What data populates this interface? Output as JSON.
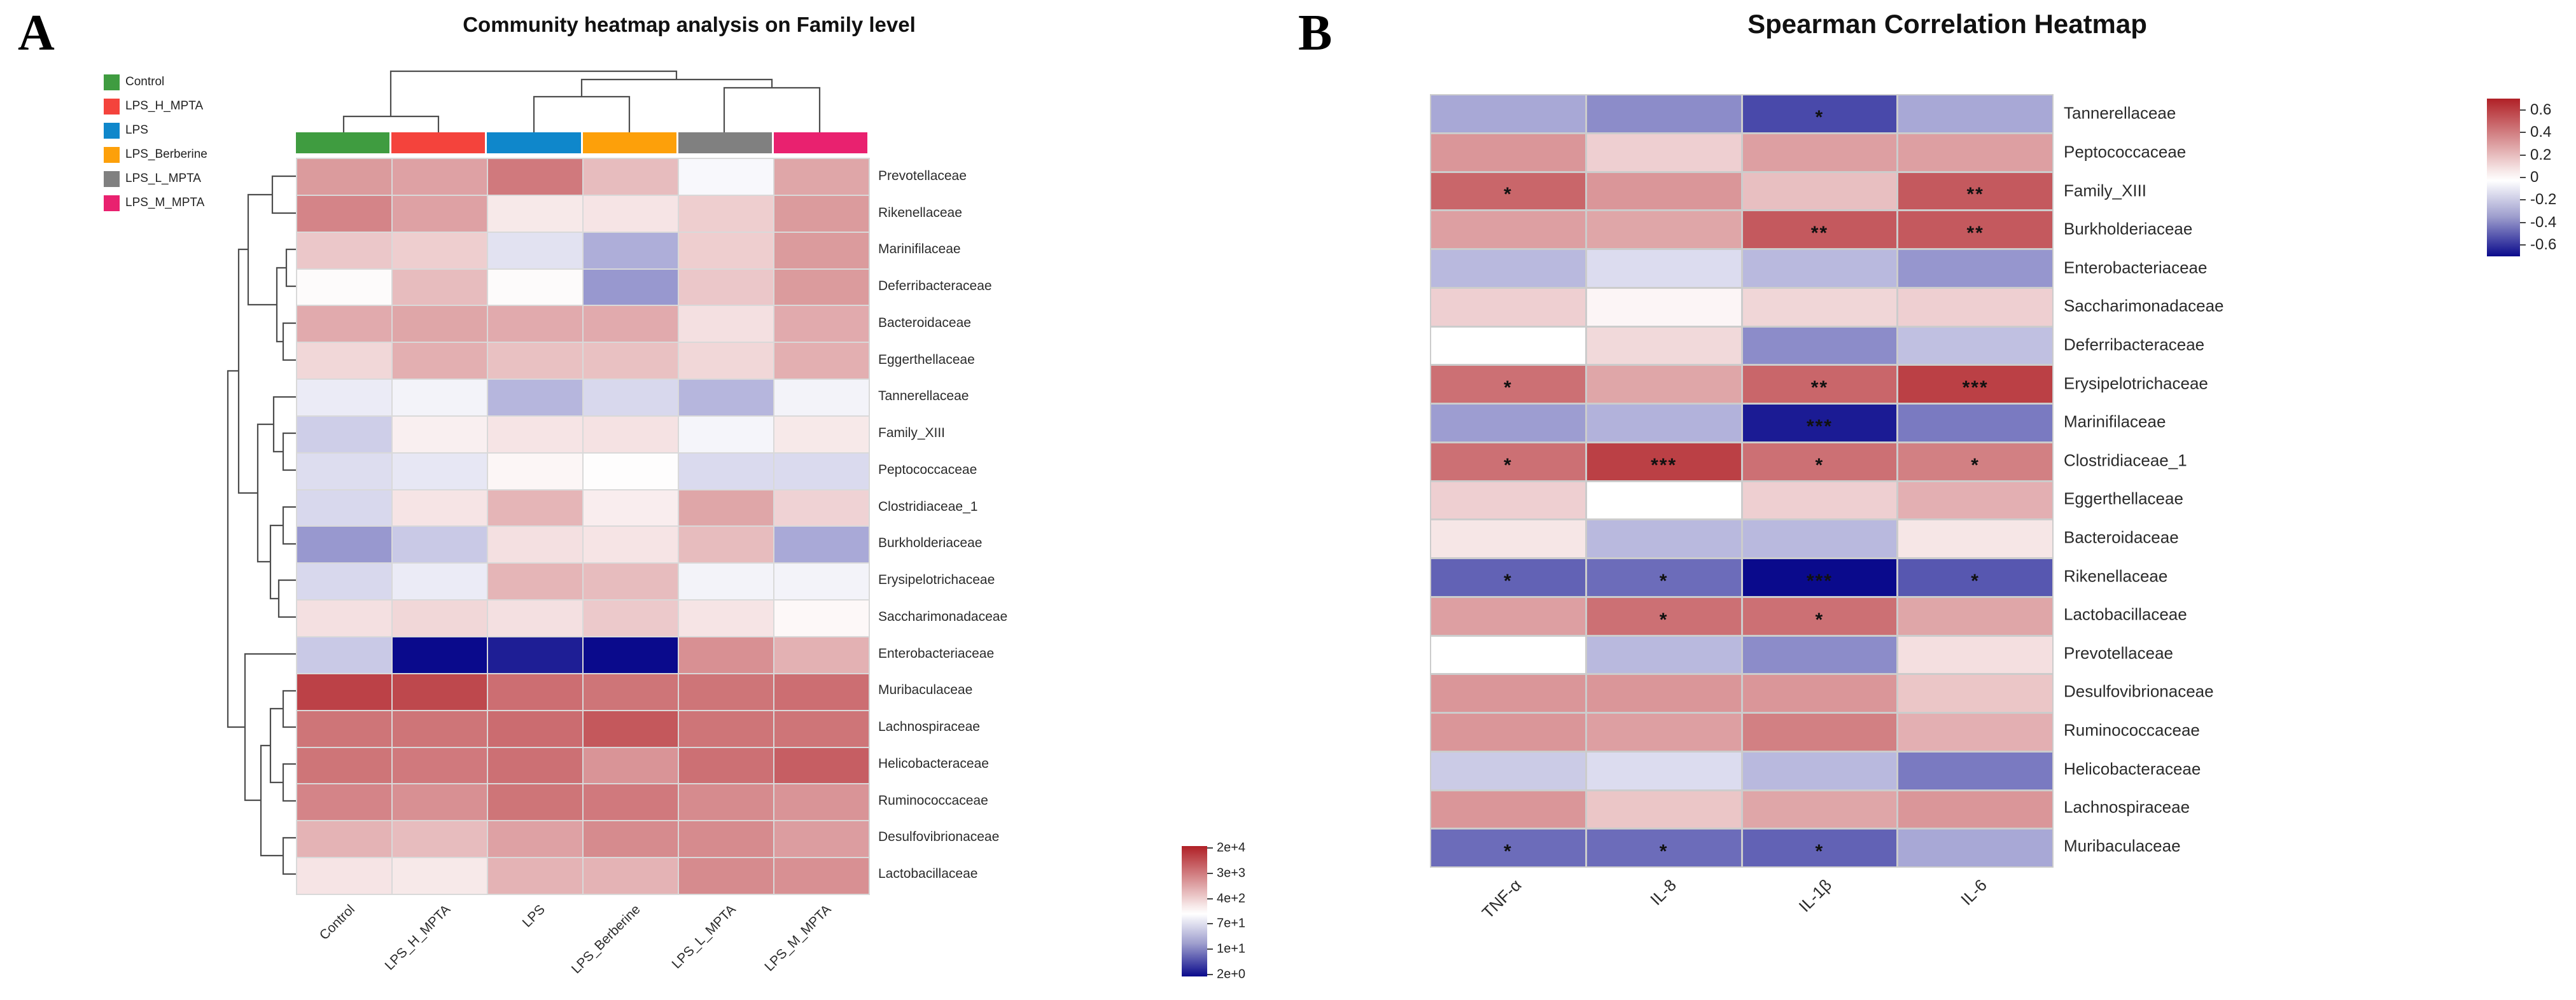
{
  "palette": {
    "heat_positive_max": "#b02026",
    "heat_negative_max": "#0a0a8c",
    "grid_line": "#d9d9d9",
    "dendrogram_line": "#4d4d4d"
  },
  "chart_data": [
    {
      "type": "heatmap",
      "panel_label": "A",
      "title": "Community heatmap analysis on Family level",
      "clustered": true,
      "legend": [
        {
          "label": "Control",
          "color": "#3f9c40"
        },
        {
          "label": "LPS_H_MPTA",
          "color": "#f4433c"
        },
        {
          "label": "LPS",
          "color": "#0f87cb"
        },
        {
          "label": "LPS_Berberine",
          "color": "#fda00a"
        },
        {
          "label": "LPS_L_MPTA",
          "color": "#808080"
        },
        {
          "label": "LPS_M_MPTA",
          "color": "#e9216f"
        }
      ],
      "columns": [
        "Control",
        "LPS_H_MPTA",
        "LPS",
        "LPS_Berberine",
        "LPS_L_MPTA",
        "LPS_M_MPTA"
      ],
      "rows": [
        "Prevotellaceae",
        "Rikenellaceae",
        "Marinifilaceae",
        "Deferribacteraceae",
        "Bacteroidaceae",
        "Eggerthellaceae",
        "Tannerellaceae",
        "Family_XIII",
        "Peptococcaceae",
        "Clostridiaceae_1",
        "Burkholderiaceae",
        "Erysipelotrichaceae",
        "Saccharimonadaceae",
        "Enterobacteriaceae",
        "Muribaculaceae",
        "Lachnospiraceae",
        "Helicobacteraceae",
        "Ruminococcaceae",
        "Desulfovibrionaceae",
        "Lactobacillaceae"
      ],
      "values_note": "normalized log-abundance, -1 = 2e+0 (dark blue), 0 = ~2e+2 (white), +1 = 2e+4 (dark red)",
      "values": [
        [
          0.45,
          0.42,
          0.6,
          0.3,
          -0.03,
          0.4
        ],
        [
          0.55,
          0.42,
          0.1,
          0.12,
          0.22,
          0.45
        ],
        [
          0.25,
          0.22,
          -0.12,
          -0.33,
          0.22,
          0.45
        ],
        [
          0.02,
          0.3,
          0.02,
          -0.42,
          0.25,
          0.45
        ],
        [
          0.38,
          0.4,
          0.38,
          0.38,
          0.14,
          0.38
        ],
        [
          0.18,
          0.36,
          0.28,
          0.28,
          0.18,
          0.36
        ],
        [
          -0.08,
          -0.05,
          -0.3,
          -0.16,
          -0.3,
          -0.05
        ],
        [
          -0.2,
          0.07,
          0.12,
          0.13,
          -0.04,
          0.1
        ],
        [
          -0.14,
          -0.1,
          0.04,
          0.01,
          -0.15,
          -0.15
        ],
        [
          -0.16,
          0.12,
          0.33,
          0.08,
          0.4,
          0.2
        ],
        [
          -0.42,
          -0.22,
          0.14,
          0.12,
          0.3,
          -0.35
        ],
        [
          -0.16,
          -0.08,
          0.33,
          0.3,
          -0.05,
          -0.05
        ],
        [
          0.14,
          0.18,
          0.14,
          0.24,
          0.12,
          0.03
        ],
        [
          -0.22,
          -1.0,
          -0.92,
          -1.0,
          0.5,
          0.35
        ],
        [
          0.85,
          0.82,
          0.65,
          0.62,
          0.62,
          0.65
        ],
        [
          0.62,
          0.62,
          0.66,
          0.75,
          0.62,
          0.62
        ],
        [
          0.62,
          0.6,
          0.64,
          0.48,
          0.64,
          0.72
        ],
        [
          0.55,
          0.5,
          0.62,
          0.6,
          0.52,
          0.48
        ],
        [
          0.34,
          0.3,
          0.42,
          0.52,
          0.52,
          0.44
        ],
        [
          0.12,
          0.1,
          0.34,
          0.34,
          0.52,
          0.5
        ]
      ],
      "colorbar_ticks": [
        "2e+4",
        "3e+3",
        "4e+2",
        "7e+1",
        "1e+1",
        "2e+0"
      ]
    },
    {
      "type": "heatmap",
      "panel_label": "B",
      "title": "Spearman Correlation Heatmap",
      "columns": [
        "TNF-α",
        "IL-8",
        "IL-1β",
        "IL-6"
      ],
      "rows": [
        "Tannerellaceae",
        "Peptococcaceae",
        "Family_XIII",
        "Burkholderiaceae",
        "Enterobacteriaceae",
        "Saccharimonadaceae",
        "Deferribacteraceae",
        "Erysipelotrichaceae",
        "Marinifilaceae",
        "Clostridiaceae_1",
        "Eggerthellaceae",
        "Bacteroidaceae",
        "Rikenellaceae",
        "Lactobacillaceae",
        "Prevotellaceae",
        "Desulfovibrionaceae",
        "Ruminococcaceae",
        "Helicobacteraceae",
        "Lachnospiraceae",
        "Muribaculaceae"
      ],
      "values_note": "Spearman correlation coefficients",
      "values": [
        [
          -0.25,
          -0.33,
          -0.52,
          -0.25
        ],
        [
          0.33,
          0.15,
          0.3,
          0.3
        ],
        [
          0.48,
          0.33,
          0.2,
          0.52
        ],
        [
          0.3,
          0.28,
          0.52,
          0.52
        ],
        [
          -0.2,
          -0.1,
          -0.2,
          -0.3
        ],
        [
          0.15,
          0.03,
          0.13,
          0.15
        ],
        [
          0.0,
          0.12,
          -0.33,
          -0.18
        ],
        [
          0.45,
          0.28,
          0.48,
          0.6
        ],
        [
          -0.28,
          -0.22,
          -0.65,
          -0.38
        ],
        [
          0.45,
          0.6,
          0.45,
          0.4
        ],
        [
          0.15,
          0.0,
          0.15,
          0.25
        ],
        [
          0.08,
          -0.2,
          -0.2,
          0.08
        ],
        [
          -0.45,
          -0.42,
          -0.7,
          -0.48
        ],
        [
          0.3,
          0.45,
          0.45,
          0.28
        ],
        [
          0.0,
          -0.2,
          -0.33,
          0.1
        ],
        [
          0.33,
          0.33,
          0.33,
          0.18
        ],
        [
          0.33,
          0.3,
          0.4,
          0.25
        ],
        [
          -0.15,
          -0.1,
          -0.2,
          -0.38
        ],
        [
          0.33,
          0.18,
          0.28,
          0.33
        ],
        [
          -0.42,
          -0.42,
          -0.45,
          -0.25
        ]
      ],
      "significance": [
        [
          "",
          "",
          "*",
          ""
        ],
        [
          "",
          "",
          "",
          ""
        ],
        [
          "*",
          "",
          "",
          "**"
        ],
        [
          "",
          "",
          "**",
          "**"
        ],
        [
          "",
          "",
          "",
          ""
        ],
        [
          "",
          "",
          "",
          ""
        ],
        [
          "",
          "",
          "",
          ""
        ],
        [
          "*",
          "",
          "**",
          "***"
        ],
        [
          "",
          "",
          "***",
          ""
        ],
        [
          "*",
          "***",
          "*",
          "*"
        ],
        [
          "",
          "",
          "",
          ""
        ],
        [
          "",
          "",
          "",
          ""
        ],
        [
          "*",
          "*",
          "***",
          "*"
        ],
        [
          "",
          "*",
          "*",
          ""
        ],
        [
          "",
          "",
          "",
          ""
        ],
        [
          "",
          "",
          "",
          ""
        ],
        [
          "",
          "",
          "",
          ""
        ],
        [
          "",
          "",
          "",
          ""
        ],
        [
          "",
          "",
          "",
          ""
        ],
        [
          "*",
          "*",
          "*",
          ""
        ]
      ],
      "colorbar_ticks": [
        "0.6",
        "0.4",
        "0.2",
        "0",
        "-0.2",
        "-0.4",
        "-0.6"
      ],
      "scale_max": 0.7
    }
  ]
}
